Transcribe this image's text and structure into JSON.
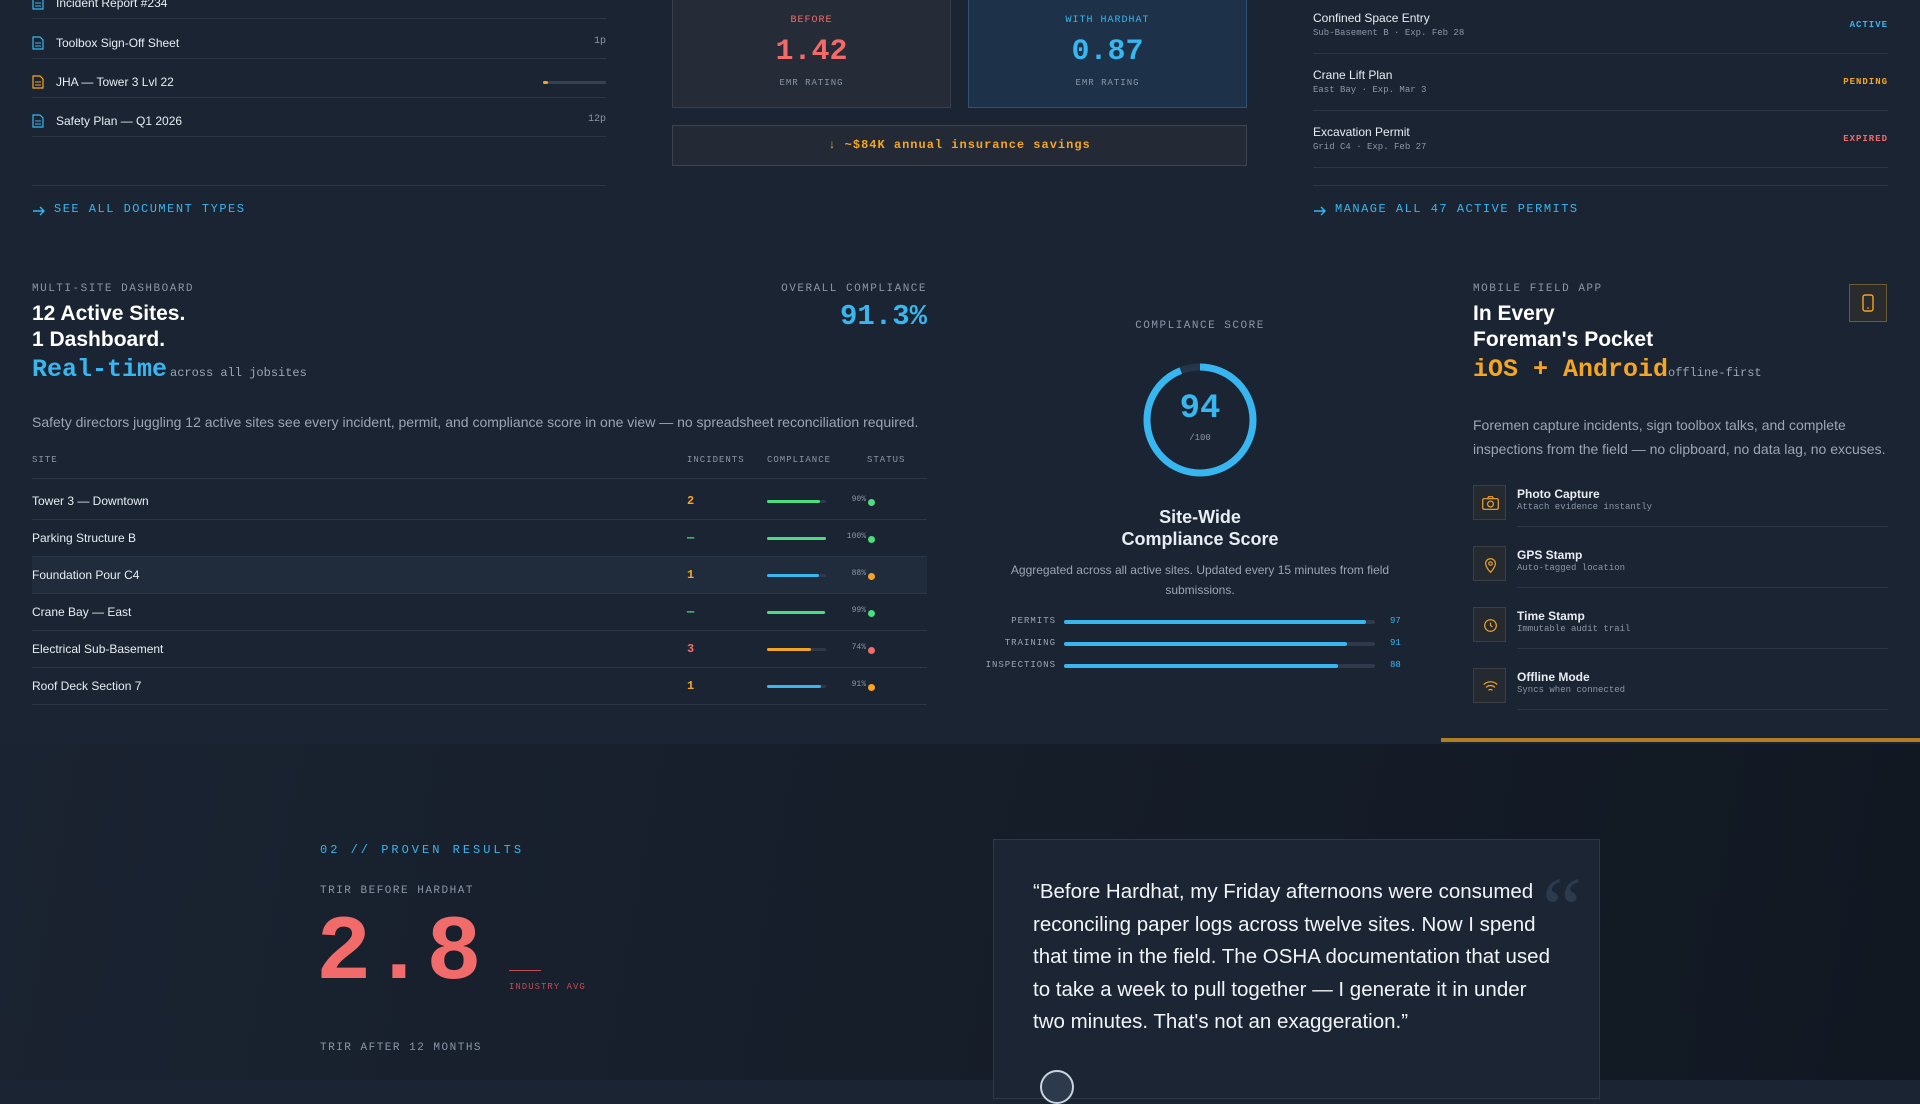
{
  "documents": {
    "items": [
      {
        "name": "Incident Report #234"
      },
      {
        "name": "Toolbox Sign-Off Sheet",
        "pages": "1p"
      },
      {
        "name": "JHA — Tower 3 Lvl 22",
        "progress": 8
      },
      {
        "name": "Safety Plan — Q1 2026",
        "pages": "12p"
      }
    ],
    "link": "SEE ALL DOCUMENT TYPES"
  },
  "emr": {
    "before": {
      "label": "BEFORE",
      "value": 1.42,
      "caption": "EMR RATING"
    },
    "after": {
      "label": "WITH HARDHAT",
      "value": 0.87,
      "caption": "EMR RATING"
    },
    "savings": "↓ ~$84K annual insurance savings"
  },
  "permits": {
    "items": [
      {
        "name": "Confined Space Entry",
        "detail": "Sub-Basement B · Exp. Feb 28",
        "status": "ACTIVE",
        "color": "#38b6f0"
      },
      {
        "name": "Crane Lift Plan",
        "detail": "East Bay · Exp. Mar 3",
        "status": "PENDING",
        "color": "#f5a524"
      },
      {
        "name": "Excavation Permit",
        "detail": "Grid C4 · Exp. Feb 27",
        "status": "EXPIRED",
        "color": "#f26b6b"
      }
    ],
    "link": "MANAGE ALL 47 ACTIVE PERMITS"
  },
  "dashboard": {
    "eyebrow": "MULTI-SITE DASHBOARD",
    "title_lines": [
      "12 Active Sites.",
      "1 Dashboard."
    ],
    "highlight": "Real-time",
    "highlight_note": "across all jobsites",
    "overall_label": "OVERALL COMPLIANCE",
    "overall_value": "91.3%",
    "description": "Safety directors juggling 12 active sites see every incident, permit, and compliance score in one view — no spreadsheet reconciliation required.",
    "headers": [
      "SITE",
      "INCIDENTS",
      "COMPLIANCE",
      "STATUS"
    ],
    "rows": [
      {
        "site": "Tower 3 — Downtown",
        "incidents": 2,
        "incidents_color": "#f5a524",
        "compliance": {
          "value": 90,
          "label": "90%"
        },
        "bar_color": "#4ade80",
        "status_color": "#4ade80"
      },
      {
        "site": "Parking Structure B",
        "incidents": "—",
        "incidents_color": "#4ade80",
        "compliance": {
          "value": 100,
          "label": "100%"
        },
        "bar_color": "#4ade80",
        "status_color": "#4ade80"
      },
      {
        "site": "Foundation Pour C4",
        "incidents": 1,
        "incidents_color": "#f5a524",
        "compliance": {
          "value": 88,
          "label": "88%"
        },
        "bar_color": "#38b6f0",
        "status_color": "#f5a524"
      },
      {
        "site": "Crane Bay — East",
        "incidents": "—",
        "incidents_color": "#4ade80",
        "compliance": {
          "value": 99,
          "label": "99%"
        },
        "bar_color": "#4ade80",
        "status_color": "#4ade80"
      },
      {
        "site": "Electrical Sub-Basement",
        "incidents": 3,
        "incidents_color": "#f26b6b",
        "compliance": {
          "value": 74,
          "label": "74%"
        },
        "bar_color": "#f5a524",
        "status_color": "#f26b6b"
      },
      {
        "site": "Roof Deck Section 7",
        "incidents": 1,
        "incidents_color": "#f5a524",
        "compliance": {
          "value": 91,
          "label": "91%"
        },
        "bar_color": "#38b6f0",
        "status_color": "#f5a524"
      }
    ]
  },
  "score": {
    "label": "COMPLIANCE SCORE",
    "value": 94,
    "max": 100,
    "max_label": "/100",
    "title_lines": [
      "Site-Wide",
      "Compliance Score"
    ],
    "description": "Aggregated across all active sites. Updated every 15 minutes from field submissions.",
    "bars": [
      {
        "name": "PERMITS",
        "value": 97
      },
      {
        "name": "TRAINING",
        "value": 91
      },
      {
        "name": "INSPECTIONS",
        "value": 88
      }
    ]
  },
  "mobile": {
    "eyebrow": "MOBILE FIELD APP",
    "title_lines": [
      "In Every",
      "Foreman's Pocket"
    ],
    "highlight": "iOS + Android",
    "highlight_note": "offline-first",
    "description": "Foremen capture incidents, sign toolbox talks, and complete inspections from the field — no clipboard, no data lag, no excuses.",
    "features": [
      {
        "title": "Photo Capture",
        "subtitle": "Attach evidence instantly"
      },
      {
        "title": "GPS Stamp",
        "subtitle": "Auto-tagged location"
      },
      {
        "title": "Time Stamp",
        "subtitle": "Immutable audit trail"
      },
      {
        "title": "Offline Mode",
        "subtitle": "Syncs when connected"
      }
    ]
  },
  "results": {
    "eyebrow": "02 // PROVEN RESULTS",
    "before_label": "TRIR BEFORE HARDHAT",
    "before_value": 2.8,
    "industry": "INDUSTRY AVG",
    "after_label": "TRIR AFTER 12 MONTHS"
  },
  "quote": {
    "text": "“Before Hardhat, my Friday afternoons were consumed reconciling paper logs across twelve sites. Now I spend that time in the field. The OSHA documentation that used to take a week to pull together — I generate it in under two minutes. That's not an exaggeration.”"
  }
}
